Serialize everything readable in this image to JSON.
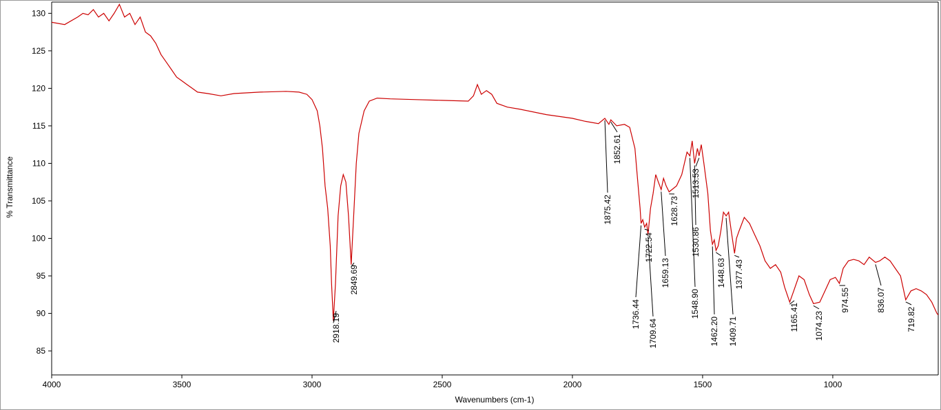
{
  "chart_data": {
    "type": "line",
    "x_label": "Wavenumbers (cm-1)",
    "y_label": "% Transmittance",
    "xlim": [
      4000,
      595
    ],
    "ylim": [
      81.8,
      131.5
    ],
    "xticks": [
      4000,
      3500,
      3000,
      2500,
      2000,
      1500,
      1000
    ],
    "yticks": [
      85,
      90,
      95,
      100,
      105,
      110,
      115,
      120,
      125,
      130
    ],
    "series": [
      {
        "color": "#cc0000",
        "x": [
          4000,
          3950,
          3900,
          3880,
          3860,
          3840,
          3820,
          3800,
          3780,
          3760,
          3740,
          3720,
          3700,
          3680,
          3660,
          3640,
          3620,
          3600,
          3580,
          3560,
          3540,
          3520,
          3500,
          3480,
          3460,
          3440,
          3400,
          3350,
          3300,
          3200,
          3100,
          3050,
          3020,
          3000,
          2980,
          2970,
          2960,
          2950,
          2940,
          2930,
          2925,
          2918.19,
          2910,
          2900,
          2890,
          2880,
          2870,
          2860,
          2849.69,
          2840,
          2830,
          2820,
          2800,
          2780,
          2750,
          2700,
          2600,
          2500,
          2400,
          2380,
          2365,
          2350,
          2330,
          2310,
          2290,
          2250,
          2200,
          2100,
          2000,
          1950,
          1900,
          1875.42,
          1860,
          1852.61,
          1830,
          1800,
          1780,
          1760,
          1750,
          1740,
          1736.44,
          1730,
          1722.54,
          1715,
          1709.64,
          1700,
          1690,
          1680,
          1670,
          1659.13,
          1650,
          1640,
          1628.73,
          1600,
          1580,
          1560,
          1548.9,
          1540,
          1530.86,
          1520,
          1513.53,
          1505,
          1495,
          1480,
          1470,
          1462.2,
          1455,
          1448.63,
          1440,
          1430,
          1420,
          1409.71,
          1400,
          1390,
          1377.43,
          1370,
          1360,
          1340,
          1320,
          1300,
          1280,
          1260,
          1240,
          1220,
          1200,
          1185,
          1165.41,
          1150,
          1130,
          1110,
          1090,
          1074.23,
          1050,
          1030,
          1010,
          990,
          974.55,
          960,
          940,
          920,
          900,
          880,
          860,
          836.07,
          820,
          800,
          780,
          760,
          740,
          719.82,
          700,
          680,
          660,
          640,
          620,
          600,
          595
        ],
        "values": [
          128.8,
          128.5,
          129.5,
          130,
          129.8,
          130.5,
          129.5,
          130,
          129,
          130,
          131.2,
          129.5,
          130,
          128.5,
          129.5,
          127.5,
          127,
          126,
          124.5,
          123.5,
          122.5,
          121.5,
          121,
          120.5,
          120,
          119.5,
          119.3,
          119,
          119.3,
          119.5,
          119.6,
          119.5,
          119.2,
          118.5,
          117,
          115,
          112,
          107,
          104,
          99,
          94,
          89,
          94,
          103,
          107,
          108.5,
          107.5,
          103,
          96.5,
          103,
          110,
          114,
          117,
          118.3,
          118.7,
          118.6,
          118.5,
          118.4,
          118.3,
          119,
          120.5,
          119.2,
          119.7,
          119.2,
          118,
          117.5,
          117.2,
          116.5,
          116,
          115.6,
          115.3,
          116,
          115.2,
          115.8,
          115,
          115.2,
          114.8,
          112,
          108,
          104,
          102,
          102.5,
          101.5,
          102,
          100.5,
          104,
          106,
          108.5,
          107.5,
          106.5,
          108,
          107,
          106.2,
          107,
          108.5,
          111.5,
          111,
          113,
          110,
          112,
          111,
          112.5,
          110,
          106,
          101,
          99.2,
          99.8,
          98.4,
          99,
          101,
          103.5,
          103,
          103.5,
          101,
          98,
          100,
          101,
          102.8,
          102,
          100.5,
          99,
          97,
          96,
          96.5,
          95.5,
          93.5,
          91.5,
          93,
          95,
          94.5,
          92.5,
          91.3,
          91.5,
          93,
          94.5,
          94.8,
          94,
          96,
          97,
          97.2,
          97,
          96.5,
          97.5,
          96.8,
          97,
          97.5,
          97,
          96,
          95,
          91.8,
          93,
          93.3,
          93,
          92.5,
          91.5,
          90,
          89.8
        ]
      }
    ],
    "peaks": [
      {
        "value": 2918.19,
        "label": "2918.19"
      },
      {
        "value": 2849.69,
        "label": "2849.69"
      },
      {
        "value": 1875.42,
        "label": "1875.42"
      },
      {
        "value": 1852.61,
        "label": "1852.61"
      },
      {
        "value": 1736.44,
        "label": "1736.44"
      },
      {
        "value": 1722.54,
        "label": "1722.54"
      },
      {
        "value": 1709.64,
        "label": "1709.64"
      },
      {
        "value": 1659.13,
        "label": "1659.13"
      },
      {
        "value": 1628.73,
        "label": "1628.73"
      },
      {
        "value": 1548.9,
        "label": "1548.90"
      },
      {
        "value": 1530.86,
        "label": "1530.86"
      },
      {
        "value": 1513.53,
        "label": "1513.53"
      },
      {
        "value": 1462.2,
        "label": "1462.20"
      },
      {
        "value": 1448.63,
        "label": "1448.63"
      },
      {
        "value": 1409.71,
        "label": "1409.71"
      },
      {
        "value": 1377.43,
        "label": "1377.43"
      },
      {
        "value": 1165.41,
        "label": "1165.41"
      },
      {
        "value": 1074.23,
        "label": "1074.23"
      },
      {
        "value": 974.55,
        "label": "974.55"
      },
      {
        "value": 836.07,
        "label": "836.07"
      },
      {
        "value": 719.82,
        "label": "719.82"
      }
    ]
  }
}
